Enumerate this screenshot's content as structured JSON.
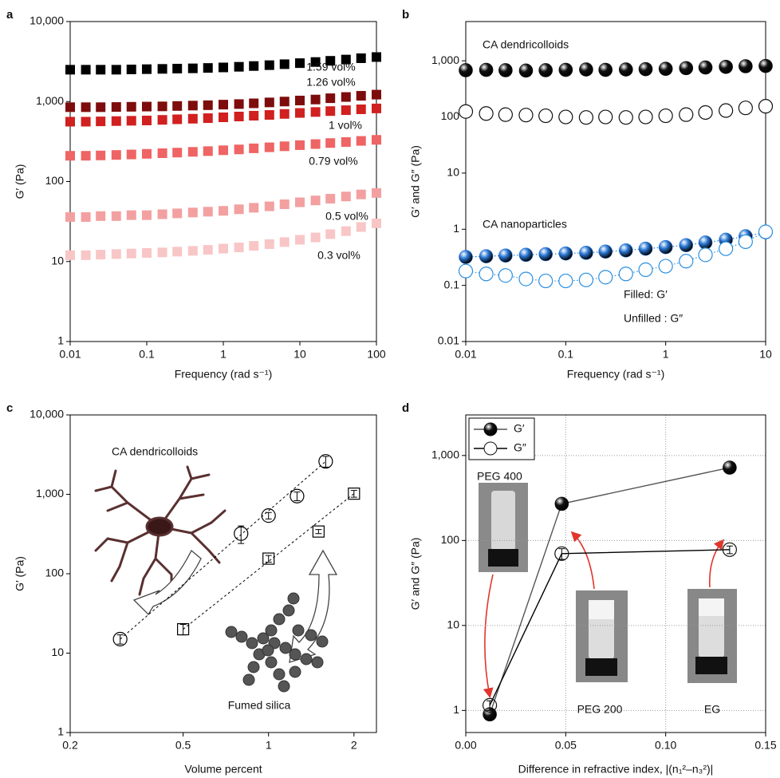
{
  "chart_data": [
    {
      "type": "scatter",
      "label": "a",
      "xlabel": "Frequency (rad s⁻¹)",
      "ylabel": "G′ (Pa)",
      "xlog": true,
      "ylog": true,
      "xlim": [
        0.01,
        100
      ],
      "ylim": [
        1,
        10000
      ],
      "xticks": [
        0.01,
        0.1,
        1,
        10,
        100
      ],
      "yticks": [
        1,
        10,
        100,
        {
          "value": 1000,
          "label": "1,000"
        },
        {
          "value": 10000,
          "label": "10,000"
        }
      ],
      "x": [
        0.01,
        0.016,
        0.025,
        0.04,
        0.063,
        0.1,
        0.16,
        0.25,
        0.4,
        0.63,
        1,
        1.6,
        2.5,
        4,
        6.3,
        10,
        16,
        25,
        40,
        63,
        100
      ],
      "series": [
        {
          "name": "1.59 vol%",
          "color": "#000000",
          "marker": "square",
          "filled": true,
          "values": [
            2500,
            2500,
            2500,
            2500,
            2520,
            2540,
            2560,
            2580,
            2600,
            2630,
            2670,
            2720,
            2780,
            2850,
            2930,
            3020,
            3120,
            3230,
            3350,
            3480,
            3600
          ]
        },
        {
          "name": "1.26 vol%",
          "color": "#7e0c0c",
          "marker": "square",
          "filled": true,
          "values": [
            850,
            850,
            850,
            855,
            860,
            865,
            870,
            880,
            890,
            900,
            915,
            930,
            950,
            975,
            1000,
            1030,
            1060,
            1100,
            1140,
            1180,
            1220
          ]
        },
        {
          "name": "1 vol%",
          "color": "#d0201f",
          "marker": "square",
          "filled": true,
          "values": [
            560,
            560,
            565,
            570,
            575,
            580,
            590,
            600,
            610,
            620,
            635,
            650,
            665,
            680,
            700,
            720,
            740,
            760,
            780,
            800,
            820
          ]
        },
        {
          "name": "0.79 vol%",
          "color": "#ef6464",
          "marker": "square",
          "filled": true,
          "values": [
            210,
            210,
            212,
            215,
            218,
            222,
            226,
            230,
            235,
            240,
            246,
            252,
            260,
            268,
            276,
            285,
            294,
            303,
            312,
            322,
            332
          ]
        },
        {
          "name": "0.5 vol%",
          "color": "#f3a0a0",
          "marker": "square",
          "filled": true,
          "values": [
            36,
            36,
            37,
            37,
            38,
            38,
            39,
            40,
            41,
            42,
            43,
            45,
            47,
            49,
            52,
            55,
            58,
            61,
            65,
            69,
            72
          ]
        },
        {
          "name": "0.3 vol%",
          "color": "#f8c6c6",
          "marker": "square",
          "filled": true,
          "values": [
            12,
            12,
            12.2,
            12.4,
            12.6,
            12.8,
            13,
            13.3,
            13.6,
            14,
            14.5,
            15,
            15.7,
            16.5,
            17.5,
            18.7,
            20,
            22,
            24,
            27,
            30
          ]
        }
      ]
    },
    {
      "type": "scatter",
      "label": "b",
      "xlabel": "Frequency (rad s⁻¹)",
      "ylabel": "G′ and G″ (Pa)",
      "xlog": true,
      "ylog": true,
      "xlim": [
        0.01,
        10
      ],
      "ylim": [
        0.01,
        5000
      ],
      "xticks": [
        0.01,
        0.1,
        1,
        10
      ],
      "yticks": [
        0.01,
        0.1,
        1,
        10,
        100,
        {
          "value": 1000,
          "label": "1,000"
        }
      ],
      "annotations": [
        "CA dendricolloids",
        "CA nanoparticles",
        "Filled: G′",
        "Unfilled : G″"
      ],
      "x": [
        0.01,
        0.016,
        0.025,
        0.04,
        0.063,
        0.1,
        0.16,
        0.25,
        0.4,
        0.63,
        1,
        1.6,
        2.5,
        4,
        6.3,
        10
      ],
      "series": [
        {
          "color": "#111111",
          "marker": "sphere",
          "filled": true,
          "values": [
            680,
            690,
            680,
            670,
            680,
            690,
            700,
            690,
            700,
            710,
            720,
            740,
            760,
            780,
            800,
            810
          ]
        },
        {
          "color": "#111111",
          "marker": "circle",
          "filled": false,
          "values": [
            125,
            115,
            110,
            108,
            105,
            100,
            98,
            100,
            98,
            100,
            105,
            110,
            120,
            130,
            145,
            155
          ]
        },
        {
          "color": "#2a78d6",
          "marker": "sphere",
          "filled": true,
          "linestyle": "dotted",
          "values": [
            0.32,
            0.33,
            0.34,
            0.35,
            0.36,
            0.37,
            0.38,
            0.4,
            0.42,
            0.45,
            0.48,
            0.52,
            0.58,
            0.65,
            0.75,
            0.88
          ]
        },
        {
          "color": "#2a8fe0",
          "marker": "circle",
          "filled": false,
          "linestyle": "dotted",
          "values": [
            0.18,
            0.16,
            0.15,
            0.13,
            0.12,
            0.12,
            0.125,
            0.14,
            0.16,
            0.19,
            0.22,
            0.27,
            0.35,
            0.45,
            0.6,
            0.9
          ]
        }
      ]
    },
    {
      "type": "scatter",
      "label": "c",
      "xlabel": "Volume percent",
      "ylabel": "G′ (Pa)",
      "xlog": true,
      "ylog": true,
      "xlim": [
        0.2,
        2.4
      ],
      "ylim": [
        1,
        10000
      ],
      "xticks": [
        0.2,
        0.5,
        1,
        2
      ],
      "yticks": [
        1,
        10,
        100,
        {
          "value": 1000,
          "label": "1,000"
        },
        {
          "value": 10000,
          "label": "10,000"
        }
      ],
      "fit_lines": true,
      "annotations": [
        "CA dendricolloids",
        "Fumed silica"
      ],
      "series": [
        {
          "color": "#000000",
          "marker": "circle",
          "filled": false,
          "x": [
            0.3,
            0.8,
            1,
            1.26,
            1.59
          ],
          "values": [
            15,
            320,
            540,
            950,
            2600
          ],
          "errors": [
            2,
            80,
            50,
            120,
            400
          ]
        },
        {
          "color": "#000000",
          "marker": "square",
          "filled": false,
          "x": [
            0.5,
            1,
            1.5,
            2
          ],
          "values": [
            20,
            155,
            340,
            1020
          ],
          "errors": [
            3,
            15,
            20,
            100
          ]
        }
      ]
    },
    {
      "type": "line",
      "label": "d",
      "xlabel": "Difference in refractive index, |(n₁²–n₃²)|",
      "ylabel": "G′ and G″ (Pa)",
      "xlog": false,
      "ylog": true,
      "xlim": [
        0,
        0.15
      ],
      "ylim": [
        0.55,
        3000
      ],
      "grid": true,
      "legend": "upper left",
      "xticks": [
        {
          "value": 0,
          "label": "0.00"
        },
        0.05,
        {
          "value": 0.1,
          "label": "0.10"
        },
        0.15
      ],
      "yticks": [
        1,
        10,
        100,
        {
          "value": 1000,
          "label": "1,000"
        }
      ],
      "annotations": [
        "PEG 400",
        "PEG 200",
        "EG"
      ],
      "x": [
        0.012,
        0.048,
        0.132
      ],
      "series": [
        {
          "name": "G′",
          "color": "#111111",
          "line_color": "#555555",
          "marker": "sphere",
          "filled": true,
          "linestyle": "solid",
          "values": [
            0.9,
            270,
            720
          ]
        },
        {
          "name": "G″",
          "color": "#111111",
          "line_color": "#000000",
          "marker": "circle",
          "filled": false,
          "linestyle": "solid",
          "values": [
            1.15,
            70,
            78
          ],
          "errors": [
            0.15,
            10,
            8
          ]
        }
      ]
    }
  ]
}
